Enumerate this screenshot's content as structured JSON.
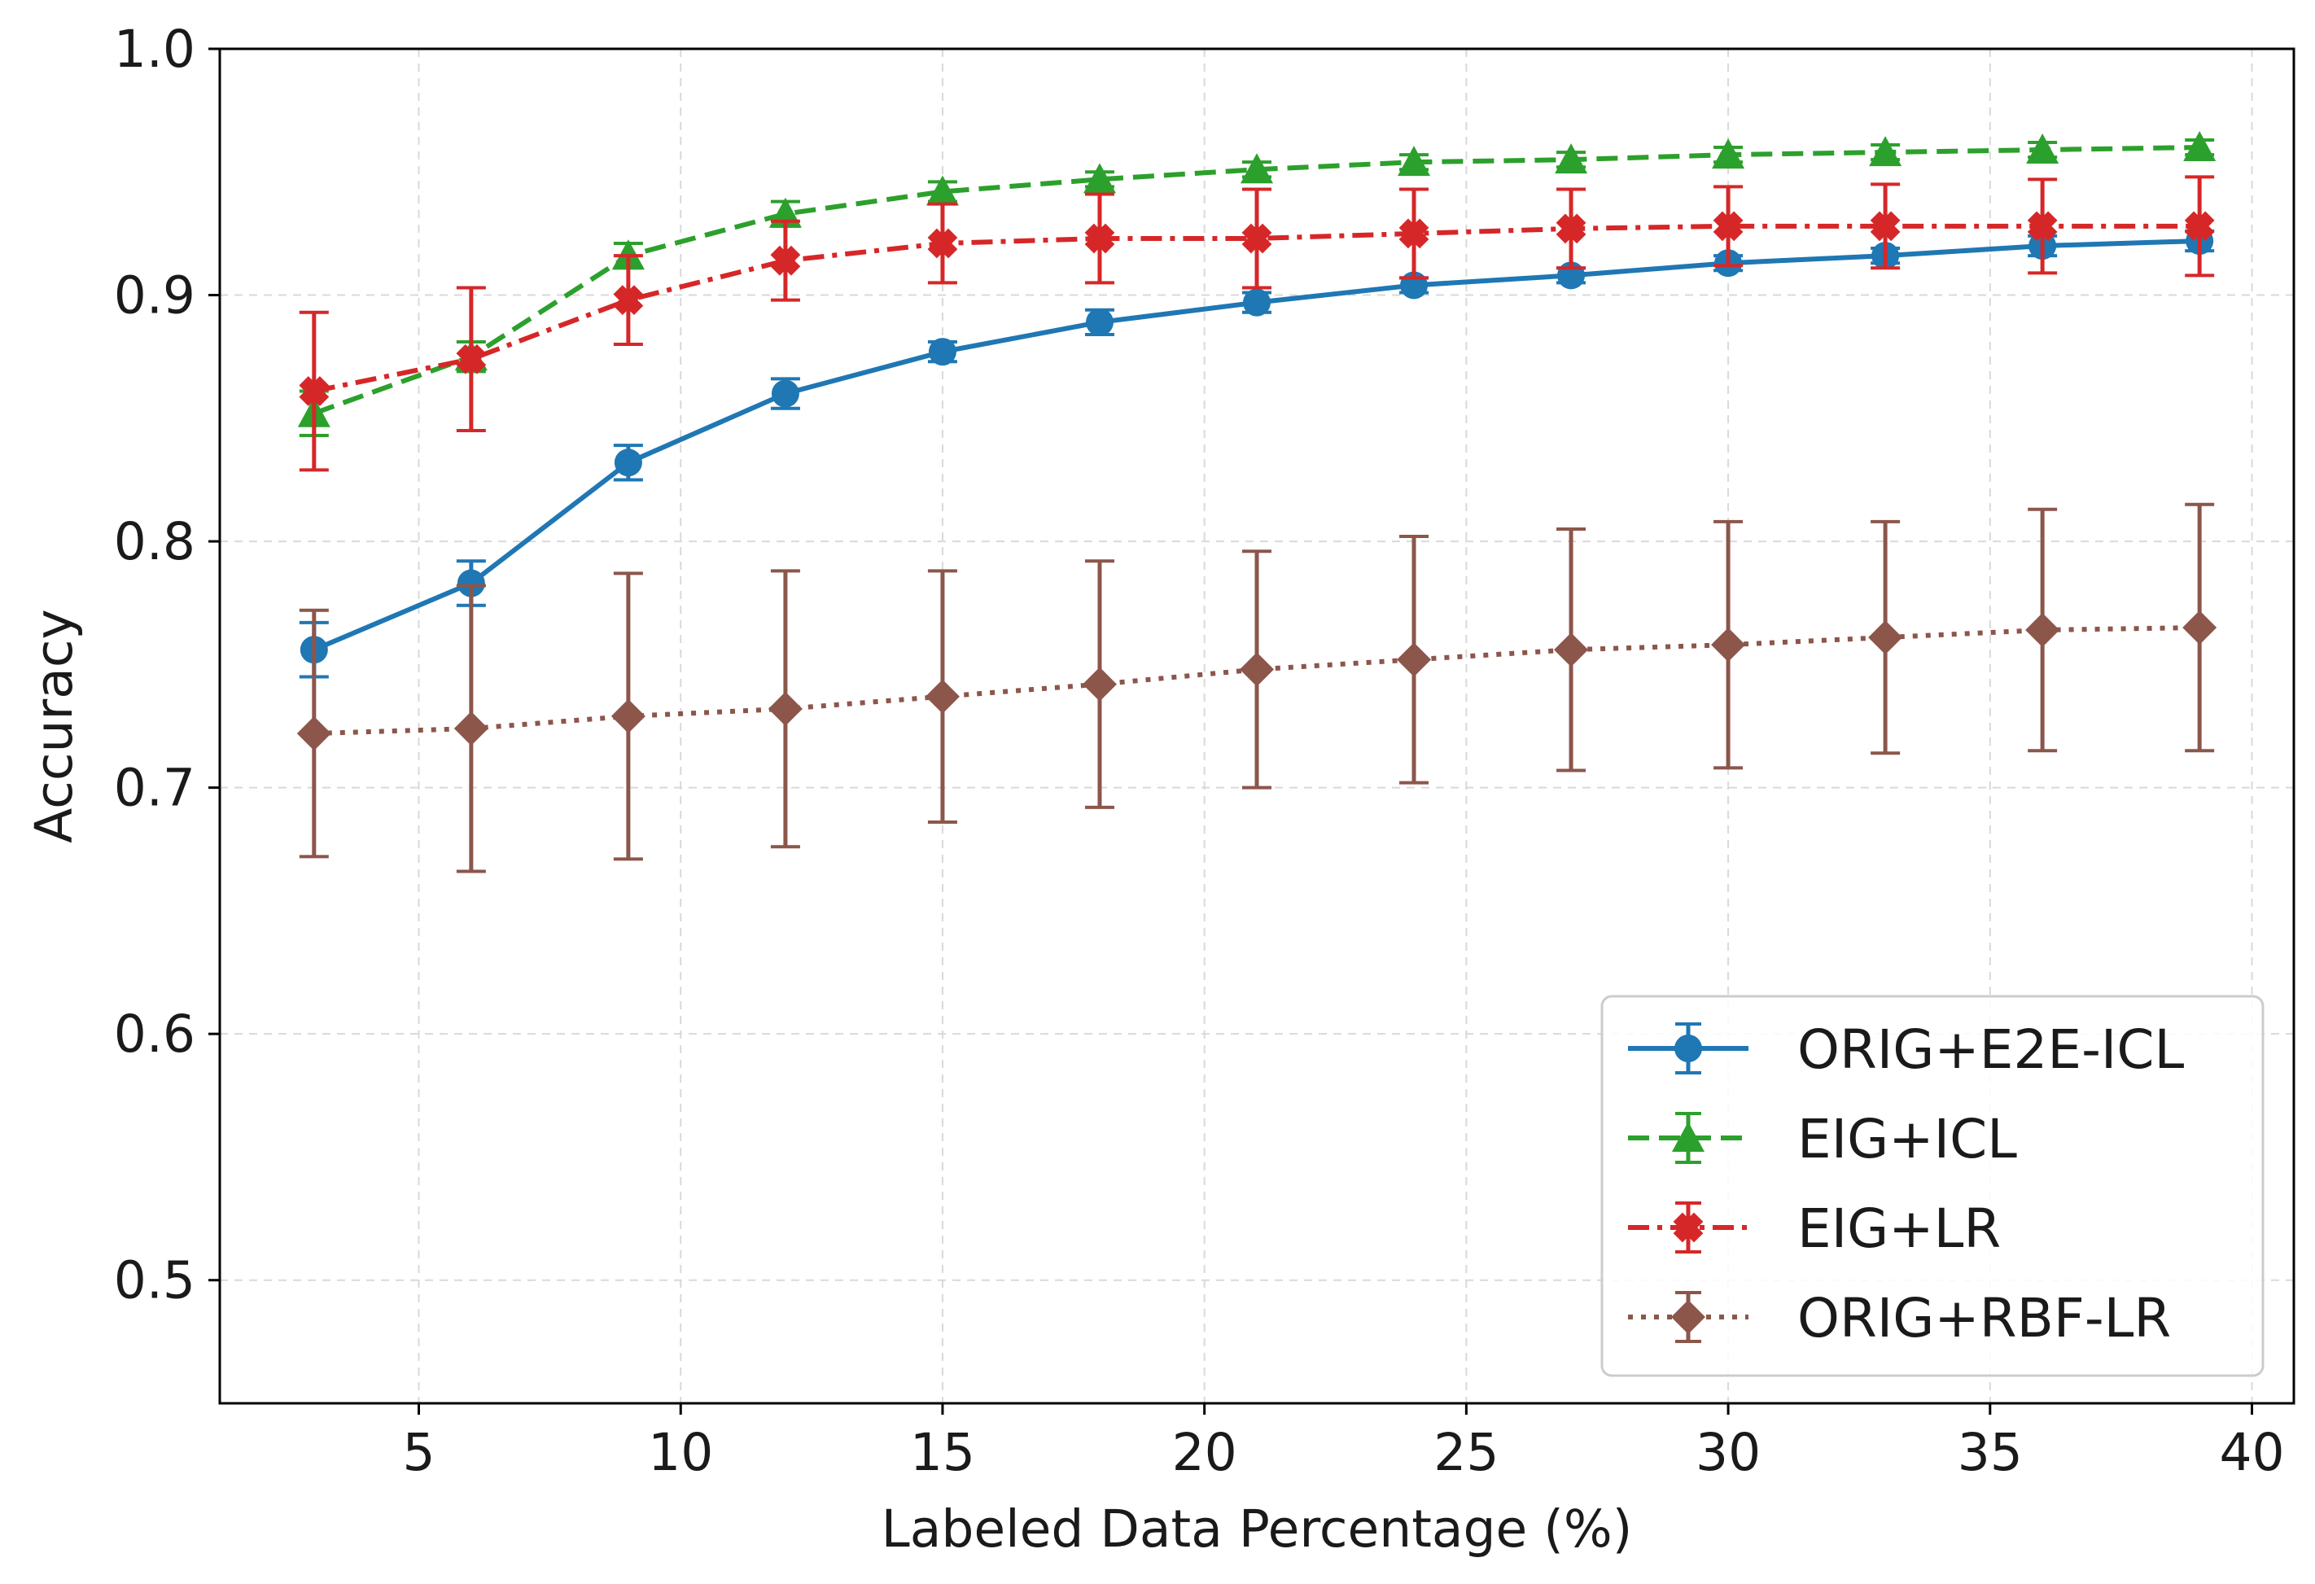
{
  "chart_data": {
    "type": "line",
    "title": "",
    "xlabel": "Labeled Data Percentage (%)",
    "ylabel": "Accuracy",
    "xlim": [
      1.2,
      40.8
    ],
    "ylim": [
      0.45,
      1.0
    ],
    "xticks": [
      5,
      10,
      15,
      20,
      25,
      30,
      35,
      40
    ],
    "yticks": [
      0.5,
      0.6,
      0.7,
      0.8,
      0.9,
      1.0
    ],
    "xtick_labels": [
      "5",
      "10",
      "15",
      "20",
      "25",
      "30",
      "35",
      "40"
    ],
    "ytick_labels": [
      "0.5",
      "0.6",
      "0.7",
      "0.8",
      "0.9",
      "1.0"
    ],
    "grid": true,
    "legend_position": "bottom-right",
    "x": [
      3,
      6,
      9,
      12,
      15,
      18,
      21,
      24,
      27,
      30,
      33,
      36,
      39
    ],
    "series": [
      {
        "name": "ORIG+E2E-ICL",
        "color": "#1f77b4",
        "linestyle": "solid",
        "marker": "circle",
        "values": [
          0.756,
          0.783,
          0.832,
          0.86,
          0.877,
          0.889,
          0.897,
          0.904,
          0.908,
          0.913,
          0.916,
          0.92,
          0.922
        ],
        "errors": [
          0.011,
          0.009,
          0.007,
          0.006,
          0.004,
          0.005,
          0.004,
          0.003,
          0.003,
          0.003,
          0.003,
          0.004,
          0.004
        ]
      },
      {
        "name": "EIG+ICL",
        "color": "#2ca02c",
        "linestyle": "dashed",
        "marker": "triangle",
        "values": [
          0.852,
          0.875,
          0.916,
          0.933,
          0.942,
          0.947,
          0.951,
          0.954,
          0.955,
          0.957,
          0.958,
          0.959,
          0.96
        ],
        "errors": [
          0.009,
          0.006,
          0.005,
          0.005,
          0.004,
          0.003,
          0.003,
          0.003,
          0.003,
          0.003,
          0.003,
          0.003,
          0.003
        ]
      },
      {
        "name": "EIG+LR",
        "color": "#d62728",
        "linestyle": "dashdot",
        "marker": "plus",
        "values": [
          0.861,
          0.874,
          0.898,
          0.914,
          0.921,
          0.923,
          0.923,
          0.925,
          0.927,
          0.928,
          0.928,
          0.928,
          0.928
        ],
        "errors": [
          0.032,
          0.029,
          0.018,
          0.016,
          0.016,
          0.018,
          0.02,
          0.018,
          0.016,
          0.016,
          0.017,
          0.019,
          0.02
        ]
      },
      {
        "name": "ORIG+RBF-LR",
        "color": "#8c564b",
        "linestyle": "dotted",
        "marker": "diamond",
        "values": [
          0.722,
          0.724,
          0.729,
          0.732,
          0.737,
          0.742,
          0.748,
          0.752,
          0.756,
          0.758,
          0.761,
          0.764,
          0.765
        ],
        "errors": [
          0.05,
          0.058,
          0.058,
          0.056,
          0.051,
          0.05,
          0.048,
          0.05,
          0.049,
          0.05,
          0.047,
          0.049,
          0.05
        ]
      }
    ]
  }
}
